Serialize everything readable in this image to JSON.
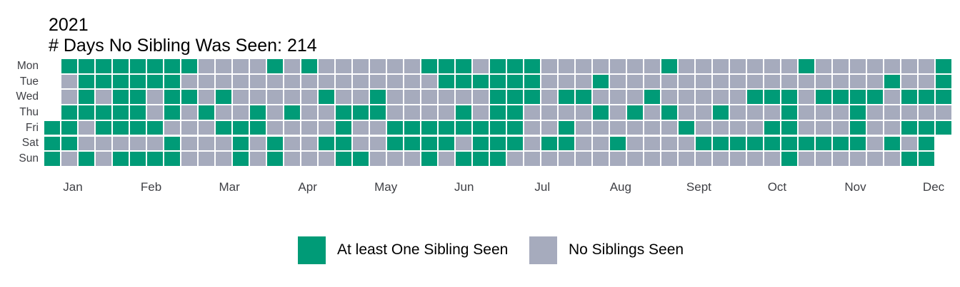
{
  "chart_data": {
    "type": "heatmap",
    "title": "2021",
    "subtitle": "# Days No Sibling Was Seen: 214",
    "row_labels": [
      "Mon",
      "Tue",
      "Wed",
      "Thu",
      "Fri",
      "Sat",
      "Sun"
    ],
    "month_labels": [
      "Jan",
      "Feb",
      "Mar",
      "Apr",
      "May",
      "Jun",
      "Jul",
      "Aug",
      "Sept",
      "Oct",
      "Nov",
      "Dec"
    ],
    "weeks": 53,
    "cell_encoding": {
      "1": "At least One Sibling Seen",
      "0": "No Siblings Seen",
      ".": "no cell (date outside 2021)"
    },
    "cells": {
      "Mon": ".1111111100001010000001110111000000010000000100000001",
      "Tue": ".0111111000000000000000111111000100000000000000001001",
      "Wed": ".0101101101000001001000000111011000100000111011110111",
      "Thu": ".1111101010010100111000010110000101010010001000100000",
      "Fri": "11011110001110000100111111110010000001000011000100111",
      "Sat": "1100000100010100110011110111011001000011111111110101.",
      "Sun": "1010111100010100011000101110000000000000000100000011."
    },
    "colors": {
      "seen": "#009B77",
      "not_seen": "#A6ABBD",
      "axis_text": "#3F4045",
      "title_text": "#000000"
    },
    "legend": [
      {
        "label": "At least One Sibling Seen",
        "key": "seen"
      },
      {
        "label": "No Siblings Seen",
        "key": "not_seen"
      }
    ]
  }
}
